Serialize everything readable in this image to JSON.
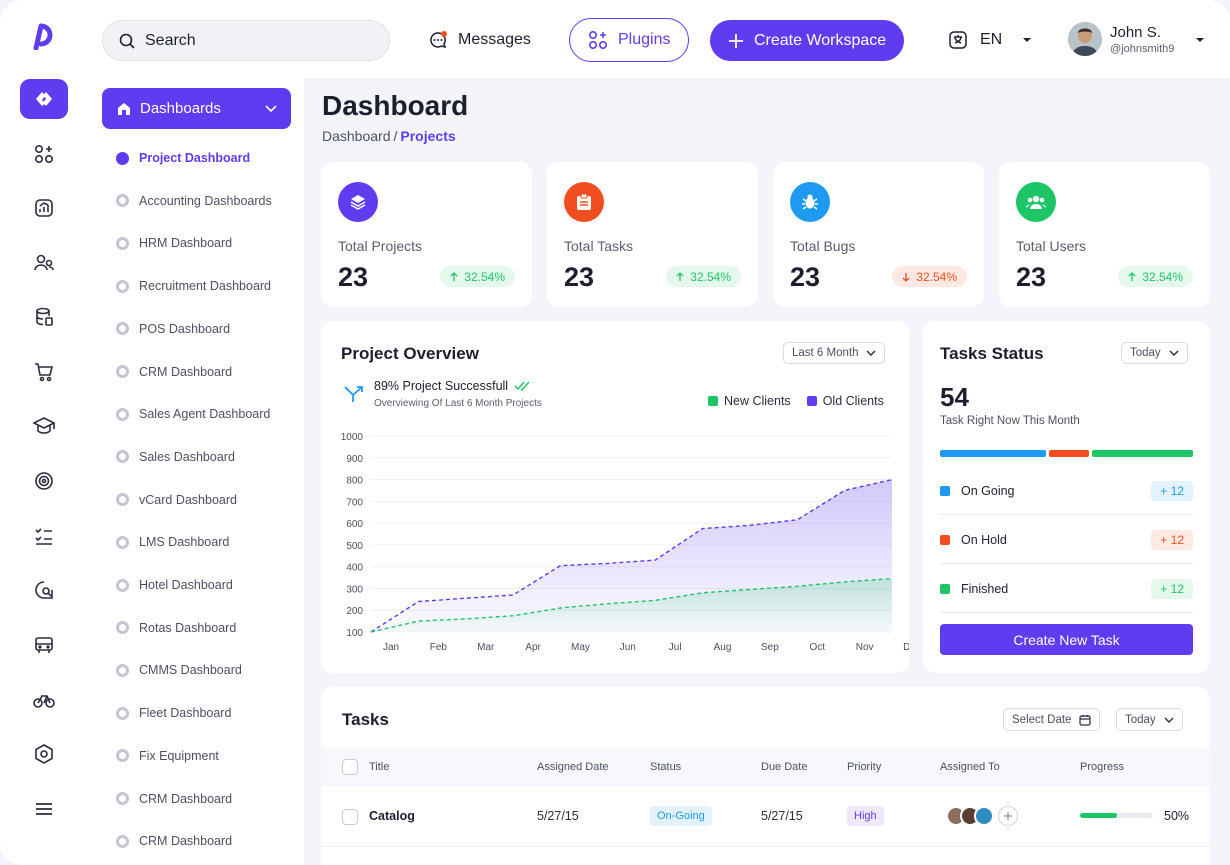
{
  "brand": {
    "accent": "#5f3cf0",
    "logo_icon": "app-logo-icon"
  },
  "rail": {
    "items": [
      "dashboard-icon",
      "apps-icon",
      "analytics-icon",
      "users-icon",
      "database-icon",
      "cart-icon",
      "graduation-icon",
      "target-icon",
      "checklist-icon",
      "chat-search-icon",
      "bus-icon",
      "bike-icon",
      "settings-icon",
      "menu-icon"
    ]
  },
  "topbar": {
    "search_placeholder": "Search",
    "messages_label": "Messages",
    "plugins_label": "Plugins",
    "create_workspace_label": "Create Workspace",
    "language": "EN",
    "user_name": "John S.",
    "user_handle": "@johnsmith9"
  },
  "sidebar": {
    "header": "Dashboards",
    "items": [
      {
        "label": "Project Dashboard",
        "active": true
      },
      {
        "label": "Accounting Dashboards"
      },
      {
        "label": "HRM Dashboard"
      },
      {
        "label": "Recruitment Dashboard"
      },
      {
        "label": "POS Dashboard"
      },
      {
        "label": "CRM Dashboard"
      },
      {
        "label": "Sales Agent Dashboard"
      },
      {
        "label": "Sales Dashboard"
      },
      {
        "label": "vCard Dashboard"
      },
      {
        "label": "LMS Dashboard"
      },
      {
        "label": "Hotel Dashboard"
      },
      {
        "label": "Rotas Dashboard"
      },
      {
        "label": "CMMS Dashboard"
      },
      {
        "label": "Fleet Dashboard"
      },
      {
        "label": "Fix Equipment"
      },
      {
        "label": "CRM Dashboard"
      },
      {
        "label": "CRM Dashboard"
      }
    ]
  },
  "page": {
    "title": "Dashboard",
    "crumb_root": "Dashboard",
    "crumb_sep": "/",
    "crumb_current": "Projects"
  },
  "stats": [
    {
      "label": "Total Projects",
      "value": "23",
      "change": "32.54%",
      "trend": "up",
      "color": "#5f3cf0",
      "icon": "layers-icon"
    },
    {
      "label": "Total Tasks",
      "value": "23",
      "change": "32.54%",
      "trend": "up",
      "color": "#f04e1e",
      "icon": "clipboard-icon"
    },
    {
      "label": "Total Bugs",
      "value": "23",
      "change": "32.54%",
      "trend": "down",
      "color": "#1e9bf0",
      "icon": "bug-icon"
    },
    {
      "label": "Total Users",
      "value": "23",
      "change": "32.54%",
      "trend": "up",
      "color": "#1ec566",
      "icon": "users-icon"
    }
  ],
  "overview": {
    "title": "Project Overview",
    "range": "Last 6 Month",
    "headline": "89% Project Successfull",
    "subline": "Overviewing Of Last 6 Month Projects"
  },
  "chart_data": {
    "type": "area",
    "categories": [
      "Jan",
      "Feb",
      "Mar",
      "Apr",
      "May",
      "Jun",
      "Jul",
      "Aug",
      "Sep",
      "Oct",
      "Nov",
      "Dec"
    ],
    "ylim": [
      100,
      1000
    ],
    "yticks": [
      1000,
      900,
      800,
      700,
      600,
      500,
      400,
      300,
      200,
      100
    ],
    "series": [
      {
        "name": "New Clients",
        "color": "#1ec566",
        "values": [
          100,
          150,
          160,
          175,
          210,
          230,
          245,
          280,
          295,
          310,
          330,
          345
        ]
      },
      {
        "name": "Old Clients",
        "color": "#5f3cf0",
        "values": [
          100,
          240,
          255,
          270,
          405,
          415,
          430,
          575,
          590,
          615,
          750,
          800
        ]
      }
    ],
    "grid": true,
    "legend": "top-right"
  },
  "tasks_status": {
    "title": "Tasks Status",
    "range": "Today",
    "count": "54",
    "caption": "Task Right Now This Month",
    "rows": [
      {
        "label": "On Going",
        "count": "+ 12",
        "color": "#1e9bf0",
        "bg": "#e3f2ff",
        "fraction": 0.43
      },
      {
        "label": "On Hold",
        "count": "+ 12",
        "color": "#f04e1e",
        "bg": "#ffe9e2",
        "fraction": 0.16
      },
      {
        "label": "Finished",
        "count": "+ 12",
        "color": "#1ec566",
        "bg": "#e4f8ec",
        "fraction": 0.41
      }
    ],
    "button": "Create New Task"
  },
  "tasks": {
    "title": "Tasks",
    "select_date": "Select Date",
    "range": "Today",
    "columns": [
      "Title",
      "Assigned Date",
      "Status",
      "Due Date",
      "Priority",
      "Assigned To",
      "Progress"
    ],
    "rows": [
      {
        "title": "Catalog",
        "assigned_date": "5/27/15",
        "status": "On-Going",
        "due_date": "5/27/15",
        "priority": "High",
        "progress": "50%",
        "progress_value": 0.5
      }
    ]
  }
}
